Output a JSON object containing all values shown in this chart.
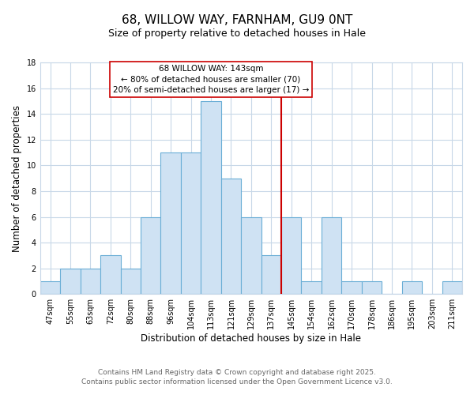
{
  "title": "68, WILLOW WAY, FARNHAM, GU9 0NT",
  "subtitle": "Size of property relative to detached houses in Hale",
  "xlabel": "Distribution of detached houses by size in Hale",
  "ylabel": "Number of detached properties",
  "bar_labels": [
    "47sqm",
    "55sqm",
    "63sqm",
    "72sqm",
    "80sqm",
    "88sqm",
    "96sqm",
    "104sqm",
    "113sqm",
    "121sqm",
    "129sqm",
    "137sqm",
    "145sqm",
    "154sqm",
    "162sqm",
    "170sqm",
    "178sqm",
    "186sqm",
    "195sqm",
    "203sqm",
    "211sqm"
  ],
  "bar_values": [
    1,
    2,
    2,
    3,
    2,
    6,
    11,
    11,
    15,
    9,
    6,
    3,
    6,
    1,
    6,
    1,
    1,
    0,
    1,
    0,
    1
  ],
  "bar_color": "#cfe2f3",
  "bar_edge_color": "#6aaed6",
  "reference_line_color": "#cc0000",
  "annotation_title": "68 WILLOW WAY: 143sqm",
  "annotation_line1": "← 80% of detached houses are smaller (70)",
  "annotation_line2": "20% of semi-detached houses are larger (17) →",
  "annotation_box_color": "#ffffff",
  "annotation_box_edge": "#cc0000",
  "ylim": [
    0,
    18
  ],
  "yticks": [
    0,
    2,
    4,
    6,
    8,
    10,
    12,
    14,
    16,
    18
  ],
  "footer_line1": "Contains HM Land Registry data © Crown copyright and database right 2025.",
  "footer_line2": "Contains public sector information licensed under the Open Government Licence v3.0.",
  "background_color": "#ffffff",
  "grid_color": "#c8d8e8",
  "title_fontsize": 11,
  "subtitle_fontsize": 9,
  "axis_label_fontsize": 8.5,
  "tick_fontsize": 7,
  "footer_fontsize": 6.5,
  "annotation_fontsize": 7.5
}
